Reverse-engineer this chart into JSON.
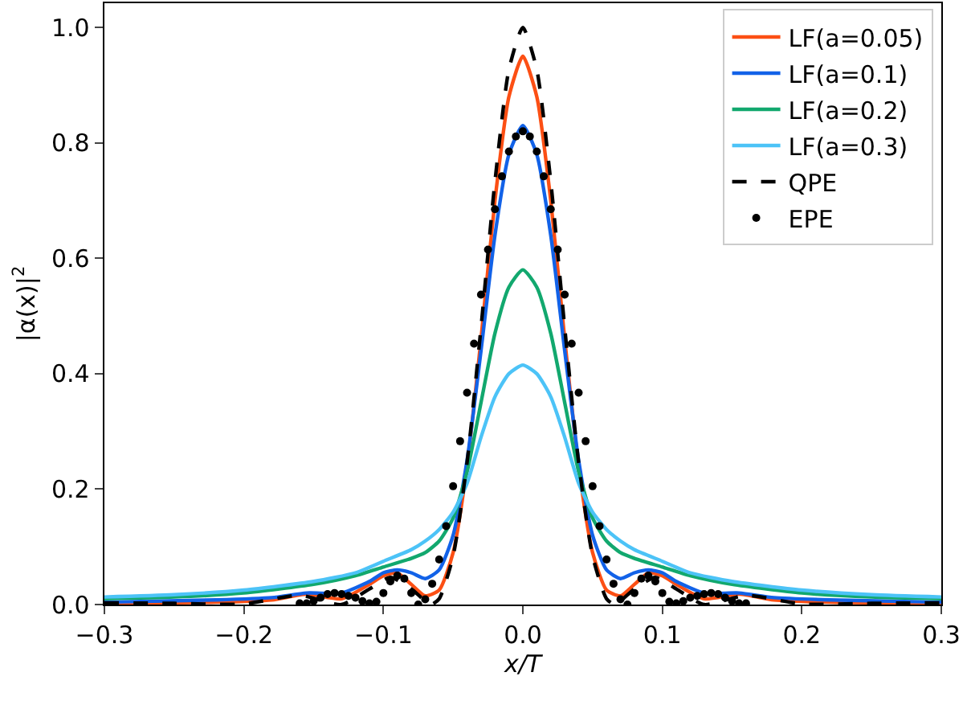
{
  "chart_data": {
    "type": "line",
    "xlabel": "x/T",
    "ylabel": "|α(x)|$^{2}$",
    "xlim": [
      -0.3,
      0.3
    ],
    "ylim": [
      0,
      1.042
    ],
    "xticks": [
      {
        "value": -0.3,
        "label": "−0.3"
      },
      {
        "value": -0.2,
        "label": "−0.2"
      },
      {
        "value": -0.1,
        "label": "−0.1"
      },
      {
        "value": 0,
        "label": "0.0"
      },
      0.1,
      0.2,
      0.3
    ],
    "yticks": [
      {
        "value": 0,
        "label": "0.0"
      },
      0.2,
      0.4,
      0.6,
      0.8,
      {
        "value": 1,
        "label": "1.0"
      }
    ],
    "grid": false,
    "legend": "top right",
    "series": [
      {
        "name": "LF(a=0.05)",
        "color": "#fc4f14",
        "line_style": "solid",
        "x": [
          -0.3,
          -0.22,
          -0.18,
          -0.155,
          -0.13,
          -0.11,
          -0.1,
          -0.09,
          -0.08,
          -0.07,
          -0.06,
          -0.05,
          -0.04,
          -0.03,
          -0.02,
          -0.01,
          0,
          0.01,
          0.02,
          0.03,
          0.04,
          0.05,
          0.06,
          0.07,
          0.08,
          0.09,
          0.1,
          0.11,
          0.13,
          0.155,
          0.18,
          0.22,
          0.3
        ],
        "values": [
          0.002,
          0.004,
          0.008,
          0.018,
          0.01,
          0.035,
          0.05,
          0.055,
          0.035,
          0.015,
          0.025,
          0.09,
          0.24,
          0.46,
          0.7,
          0.88,
          0.95,
          0.88,
          0.7,
          0.46,
          0.24,
          0.09,
          0.025,
          0.015,
          0.035,
          0.055,
          0.05,
          0.035,
          0.01,
          0.018,
          0.008,
          0.004,
          0.002
        ]
      },
      {
        "name": "LF(a=0.1)",
        "color": "#1262e8",
        "line_style": "solid",
        "x": [
          -0.3,
          -0.22,
          -0.18,
          -0.155,
          -0.13,
          -0.11,
          -0.1,
          -0.09,
          -0.08,
          -0.07,
          -0.06,
          -0.05,
          -0.04,
          -0.03,
          -0.02,
          -0.01,
          0,
          0.01,
          0.02,
          0.03,
          0.04,
          0.05,
          0.06,
          0.07,
          0.08,
          0.09,
          0.1,
          0.11,
          0.13,
          0.155,
          0.18,
          0.22,
          0.3
        ],
        "values": [
          0.004,
          0.008,
          0.012,
          0.02,
          0.02,
          0.04,
          0.055,
          0.06,
          0.055,
          0.045,
          0.06,
          0.12,
          0.25,
          0.44,
          0.64,
          0.78,
          0.83,
          0.78,
          0.64,
          0.44,
          0.25,
          0.12,
          0.06,
          0.045,
          0.055,
          0.06,
          0.055,
          0.04,
          0.02,
          0.02,
          0.012,
          0.008,
          0.004
        ]
      },
      {
        "name": "LF(a=0.2)",
        "color": "#12a86e",
        "line_style": "solid",
        "x": [
          -0.3,
          -0.25,
          -0.2,
          -0.15,
          -0.12,
          -0.1,
          -0.08,
          -0.07,
          -0.06,
          -0.05,
          -0.04,
          -0.03,
          -0.02,
          -0.01,
          0,
          0.01,
          0.02,
          0.03,
          0.04,
          0.05,
          0.06,
          0.07,
          0.08,
          0.1,
          0.12,
          0.15,
          0.2,
          0.25,
          0.3
        ],
        "values": [
          0.01,
          0.013,
          0.02,
          0.035,
          0.05,
          0.065,
          0.08,
          0.09,
          0.11,
          0.15,
          0.23,
          0.35,
          0.47,
          0.55,
          0.58,
          0.55,
          0.47,
          0.35,
          0.23,
          0.15,
          0.11,
          0.09,
          0.08,
          0.065,
          0.05,
          0.035,
          0.02,
          0.013,
          0.01
        ]
      },
      {
        "name": "LF(a=0.3)",
        "color": "#4cc3f7",
        "line_style": "solid",
        "x": [
          -0.3,
          -0.25,
          -0.2,
          -0.15,
          -0.12,
          -0.1,
          -0.08,
          -0.07,
          -0.06,
          -0.05,
          -0.04,
          -0.03,
          -0.02,
          -0.01,
          0,
          0.01,
          0.02,
          0.03,
          0.04,
          0.05,
          0.06,
          0.07,
          0.08,
          0.1,
          0.12,
          0.15,
          0.2,
          0.25,
          0.3
        ],
        "values": [
          0.013,
          0.017,
          0.025,
          0.04,
          0.055,
          0.075,
          0.095,
          0.11,
          0.13,
          0.16,
          0.21,
          0.29,
          0.36,
          0.4,
          0.415,
          0.4,
          0.36,
          0.29,
          0.21,
          0.16,
          0.13,
          0.11,
          0.095,
          0.075,
          0.055,
          0.04,
          0.025,
          0.017,
          0.013
        ]
      },
      {
        "name": "QPE",
        "color": "#000000",
        "line_style": "dashed",
        "x": [
          -0.3,
          -0.25,
          -0.2,
          -0.16,
          -0.13,
          -0.11,
          -0.095,
          -0.08,
          -0.066,
          -0.06,
          -0.05,
          -0.04,
          -0.03,
          -0.02,
          -0.01,
          0,
          0.01,
          0.02,
          0.03,
          0.04,
          0.05,
          0.06,
          0.066,
          0.08,
          0.095,
          0.11,
          0.13,
          0.16,
          0.2,
          0.25,
          0.3
        ],
        "values": [
          0.003,
          0.002,
          0.001,
          0.016,
          0,
          0.027,
          0.047,
          0.027,
          0,
          0.01,
          0.084,
          0.246,
          0.48,
          0.733,
          0.927,
          1,
          0.927,
          0.733,
          0.48,
          0.246,
          0.084,
          0.01,
          0,
          0.027,
          0.047,
          0.027,
          0,
          0.016,
          0.001,
          0.002,
          0.003
        ]
      },
      {
        "name": "EPE",
        "type": "scatter",
        "marker": "circle",
        "color": "#000000",
        "x": [
          -0.16,
          -0.155,
          -0.15,
          -0.145,
          -0.14,
          -0.135,
          -0.13,
          -0.125,
          -0.12,
          -0.115,
          -0.11,
          -0.105,
          -0.1,
          -0.095,
          -0.09,
          -0.085,
          -0.08,
          -0.075,
          -0.07,
          -0.065,
          -0.06,
          -0.055,
          -0.05,
          -0.045,
          -0.04,
          -0.035,
          -0.03,
          -0.025,
          -0.02,
          -0.015,
          -0.01,
          -0.005,
          0,
          0.005,
          0.01,
          0.015,
          0.02,
          0.025,
          0.03,
          0.035,
          0.04,
          0.045,
          0.05,
          0.055,
          0.06,
          0.065,
          0.07,
          0.075,
          0.08,
          0.085,
          0.09,
          0.095,
          0.1,
          0.105,
          0.11,
          0.115,
          0.12,
          0.125,
          0.13,
          0.135,
          0.14,
          0.145,
          0.15,
          0.155,
          0.16
        ],
        "values": [
          0.002,
          0.002,
          0.006,
          0.012,
          0.018,
          0.02,
          0.018,
          0.015,
          0.012,
          0.006,
          0.002,
          0.005,
          0.02,
          0.04,
          0.05,
          0.045,
          0.02,
          0,
          0.009,
          0.036,
          0.078,
          0.136,
          0.205,
          0.283,
          0.367,
          0.452,
          0.537,
          0.615,
          0.685,
          0.742,
          0.785,
          0.811,
          0.82,
          0.811,
          0.785,
          0.742,
          0.685,
          0.615,
          0.537,
          0.452,
          0.367,
          0.283,
          0.205,
          0.136,
          0.078,
          0.036,
          0.009,
          0,
          0.02,
          0.045,
          0.05,
          0.04,
          0.02,
          0.005,
          0.002,
          0.006,
          0.012,
          0.015,
          0.018,
          0.02,
          0.018,
          0.012,
          0.006,
          0.002,
          0.002
        ]
      }
    ]
  }
}
